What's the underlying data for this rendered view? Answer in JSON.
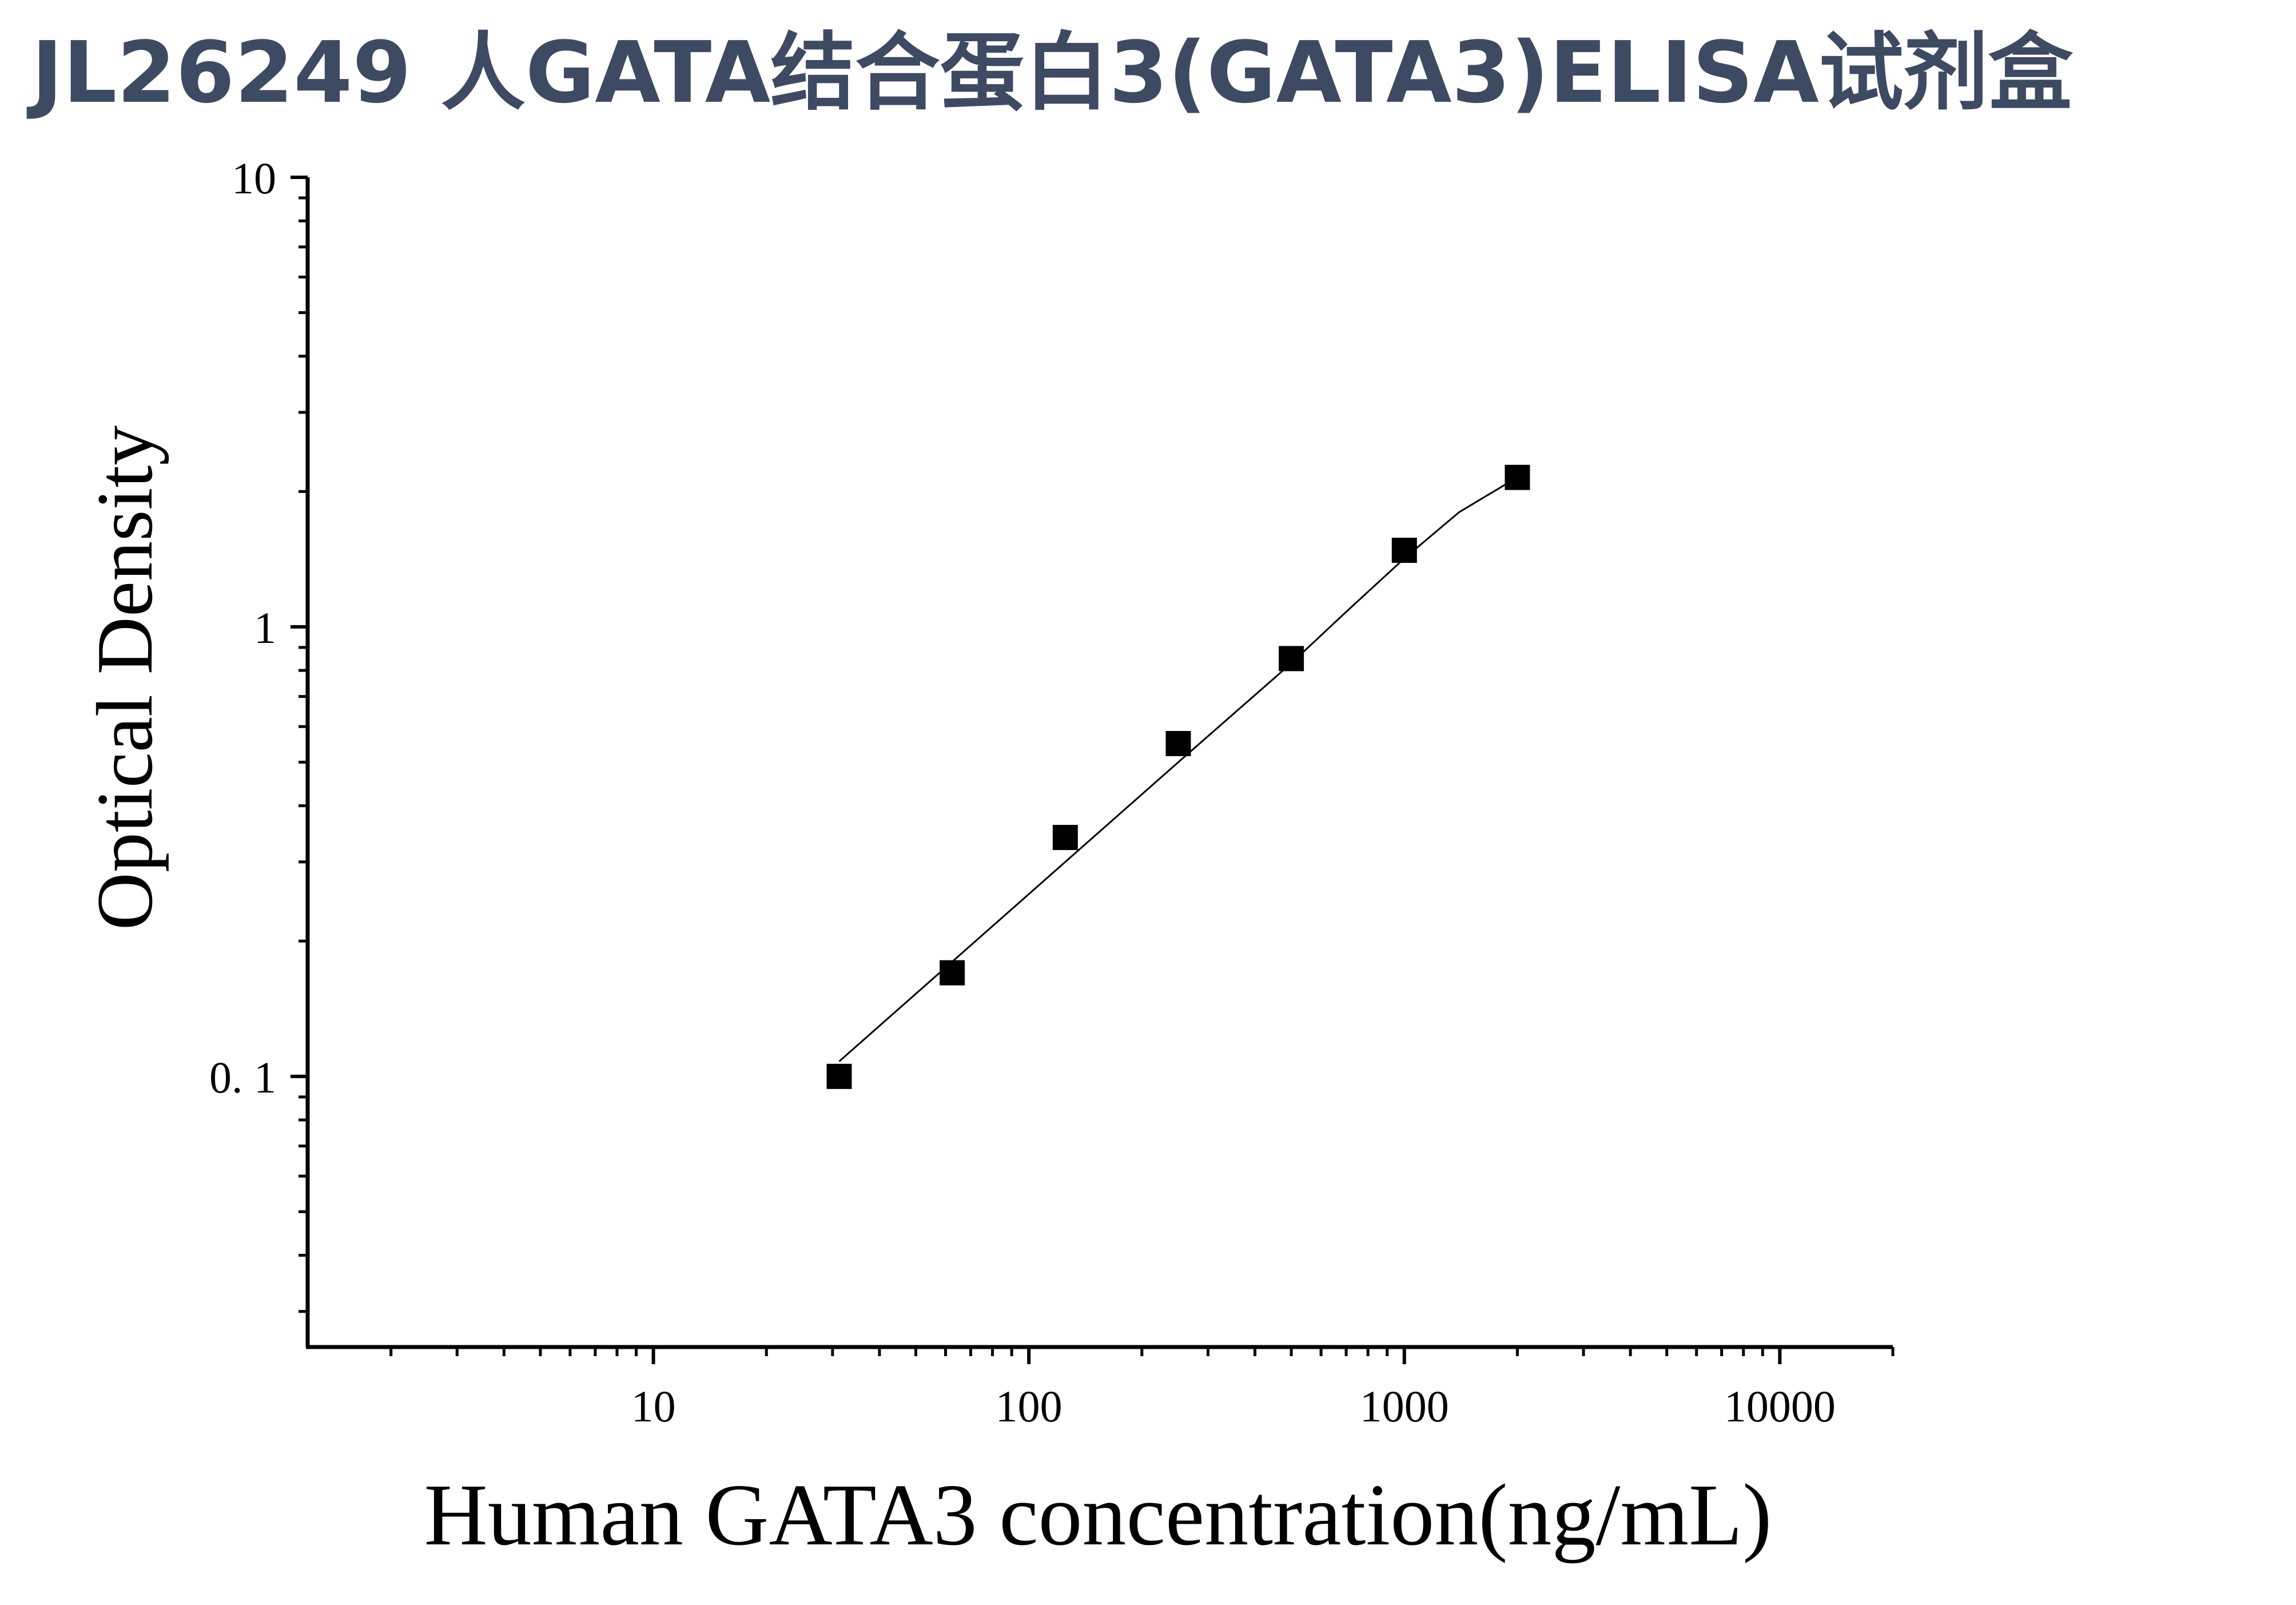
{
  "page_title": "JL26249 人GATA结合蛋白3(GATA3)ELISA试剂盒",
  "chart_data": {
    "type": "scatter",
    "xlabel": "Human GATA3 concentration(ng/mL)",
    "ylabel": "Optical Density",
    "x_scale": "log",
    "y_scale": "log",
    "xlim": [
      1.2,
      20000
    ],
    "ylim": [
      0.025,
      10
    ],
    "x_ticks": [
      10,
      100,
      1000,
      10000
    ],
    "x_tick_labels": [
      "10",
      "100",
      "1000",
      "10000"
    ],
    "y_ticks": [
      0.1,
      1,
      10
    ],
    "y_tick_labels": [
      "0. 1",
      "1",
      "10"
    ],
    "grid": false,
    "legend": "none",
    "marker": "square",
    "marker_color": "#000000",
    "line_color": "#000000",
    "title_color": "#3d4a62",
    "series": [
      {
        "x": [
          31.25,
          62.5,
          125,
          250,
          500,
          1000,
          2000
        ],
        "y": [
          0.1,
          0.17,
          0.34,
          0.55,
          0.85,
          1.48,
          2.15
        ]
      }
    ],
    "fit_curve": {
      "x": [
        31.25,
        62.5,
        125,
        250,
        500,
        700,
        1000,
        1400,
        2000
      ],
      "y": [
        0.108,
        0.18,
        0.3,
        0.5,
        0.83,
        1.08,
        1.42,
        1.8,
        2.15
      ]
    }
  }
}
